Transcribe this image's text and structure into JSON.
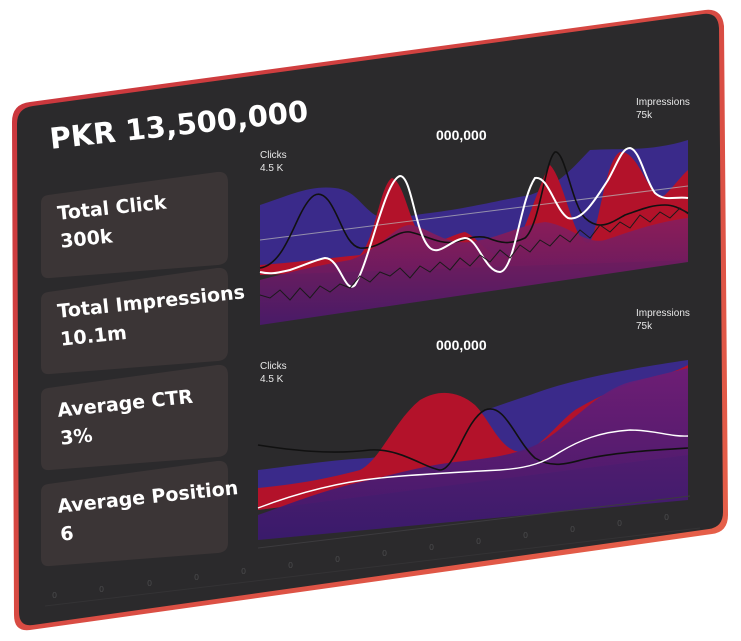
{
  "dashboard": {
    "amount": "PKR 13,500,000",
    "metrics": [
      {
        "label": "Total Click",
        "value": "300k"
      },
      {
        "label": "Total Impressions",
        "value": "10.1m"
      },
      {
        "label": "Average CTR",
        "value": "3%"
      },
      {
        "label": "Average Position",
        "value": "6"
      }
    ],
    "charts": [
      {
        "title": "000,000",
        "left_axis_label": "Clicks",
        "left_axis_value": "4.5 K",
        "right_axis_label": "Impressions",
        "right_axis_value": "75k"
      },
      {
        "title": "000,000",
        "left_axis_label": "Clicks",
        "left_axis_value": "4.5 K",
        "right_axis_label": "Impressions",
        "right_axis_value": "75k"
      }
    ]
  },
  "colors": {
    "frame_border": "#e0523f",
    "panel": "#2b2a2c",
    "card": "#3b3536",
    "series_red": "#b3122a",
    "series_blue": "#3a2a8a",
    "series_purple": "#5a1d6a"
  }
}
